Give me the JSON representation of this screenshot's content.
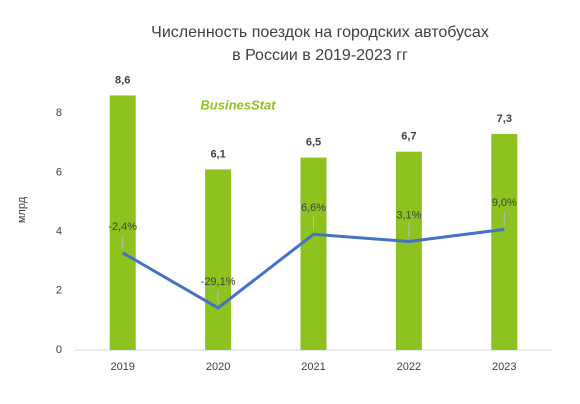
{
  "chart_data": {
    "type": "bar",
    "title": [
      "Численность поездок на городских автобусах",
      "в России в 2019-2023 гг"
    ],
    "watermark": "BusinesStat",
    "ylabel": "млрд",
    "categories": [
      "2019",
      "2020",
      "2021",
      "2022",
      "2023"
    ],
    "series": [
      {
        "type": "bar",
        "color": "#8dc21f",
        "values": [
          8.6,
          6.1,
          6.5,
          6.7,
          7.3
        ],
        "value_labels": [
          "8,6",
          "6,1",
          "6,5",
          "6,7",
          "7,3"
        ]
      },
      {
        "type": "line",
        "axis": "y2",
        "color": "#4472c4",
        "values": [
          -2.4,
          -29.1,
          6.6,
          3.1,
          9.0
        ],
        "value_labels": [
          "-2,4%",
          "-29,1%",
          "6,6%",
          "3,1%",
          "9,0%"
        ]
      }
    ],
    "ylim": [
      0,
      10
    ],
    "yticks": [
      0,
      2,
      4,
      6,
      8
    ],
    "y2lim": [
      -49.5,
      94
    ],
    "grid": false
  }
}
